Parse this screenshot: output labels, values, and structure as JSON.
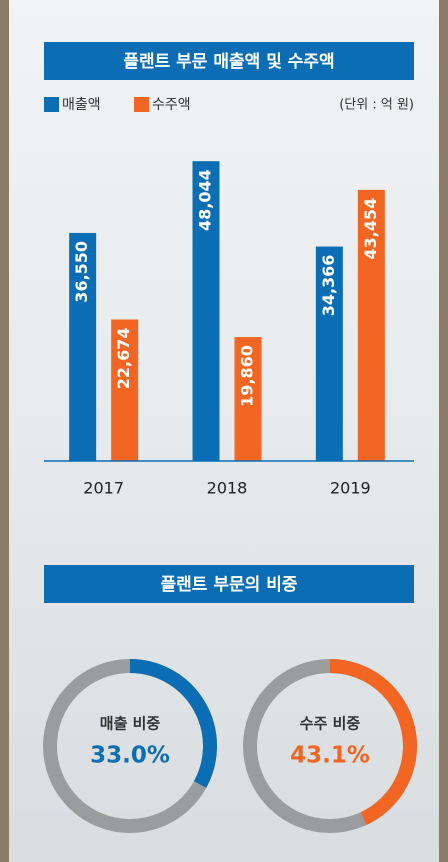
{
  "chart_data": [
    {
      "type": "bar",
      "title": "플랜트 부문 매출액 및 수주액",
      "unit": "(단위 : 억 원)",
      "categories": [
        "2017",
        "2018",
        "2019"
      ],
      "series": [
        {
          "name": "매출액",
          "color": "#0b6db3",
          "values": [
            36550,
            48044,
            34366
          ],
          "value_labels": [
            "36,550",
            "48,044",
            "34,366"
          ]
        },
        {
          "name": "수주액",
          "color": "#f26522",
          "values": [
            22674,
            19860,
            43454
          ],
          "value_labels": [
            "22,674",
            "19,860",
            "43,454"
          ]
        }
      ],
      "ylim": [
        0,
        50000
      ]
    },
    {
      "type": "donut",
      "title": "플랜트 부문의 비중",
      "categories": [
        "매출 비중",
        "수주 비중"
      ],
      "values": [
        33.0,
        43.1
      ],
      "value_labels": [
        "33.0%",
        "43.1%"
      ],
      "colors": [
        "#0b6db3",
        "#f26522"
      ],
      "track_color": "#9b9c9e",
      "ylim": [
        0,
        100
      ]
    }
  ]
}
